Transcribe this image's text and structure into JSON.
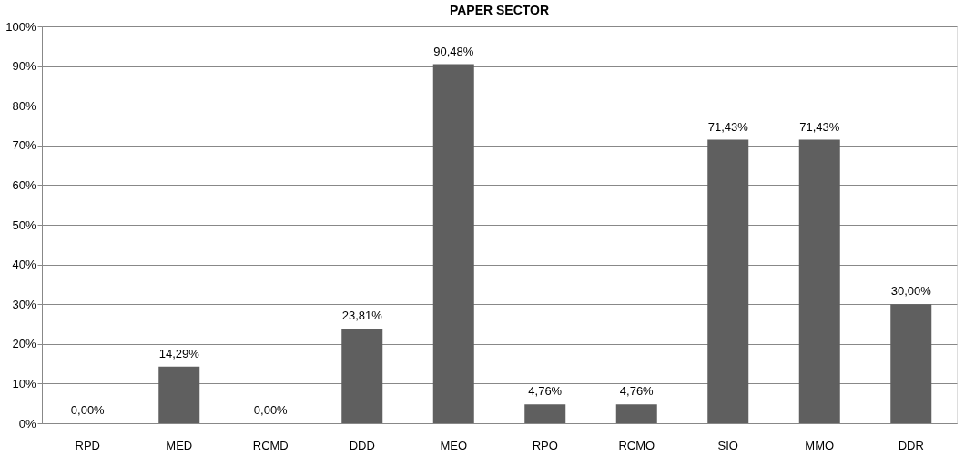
{
  "chart_data": {
    "type": "bar",
    "title": "PAPER SECTOR",
    "categories": [
      "RPD",
      "MED",
      "RCMD",
      "DDD",
      "MEO",
      "RPO",
      "RCMO",
      "SIO",
      "MMO",
      "DDR"
    ],
    "values": [
      0,
      14.29,
      0,
      23.81,
      90.48,
      4.76,
      4.76,
      71.43,
      71.43,
      30
    ],
    "value_labels": [
      "0,00%",
      "14,29%",
      "0,00%",
      "23,81%",
      "90,48%",
      "4,76%",
      "4,76%",
      "71,43%",
      "71,43%",
      "30,00%"
    ],
    "color": "#5f5f5f",
    "ylim": [
      0,
      100
    ],
    "yticks": [
      {
        "value": 0,
        "label": "0%"
      },
      {
        "value": 10,
        "label": "10%"
      },
      {
        "value": 20,
        "label": "20%"
      },
      {
        "value": 30,
        "label": "30%"
      },
      {
        "value": 40,
        "label": "40%"
      },
      {
        "value": 50,
        "label": "50%"
      },
      {
        "value": 60,
        "label": "60%"
      },
      {
        "value": 70,
        "label": "70%"
      },
      {
        "value": 80,
        "label": "80%"
      },
      {
        "value": 90,
        "label": "90%"
      },
      {
        "value": 100,
        "label": "100%"
      }
    ],
    "grid": "y"
  }
}
